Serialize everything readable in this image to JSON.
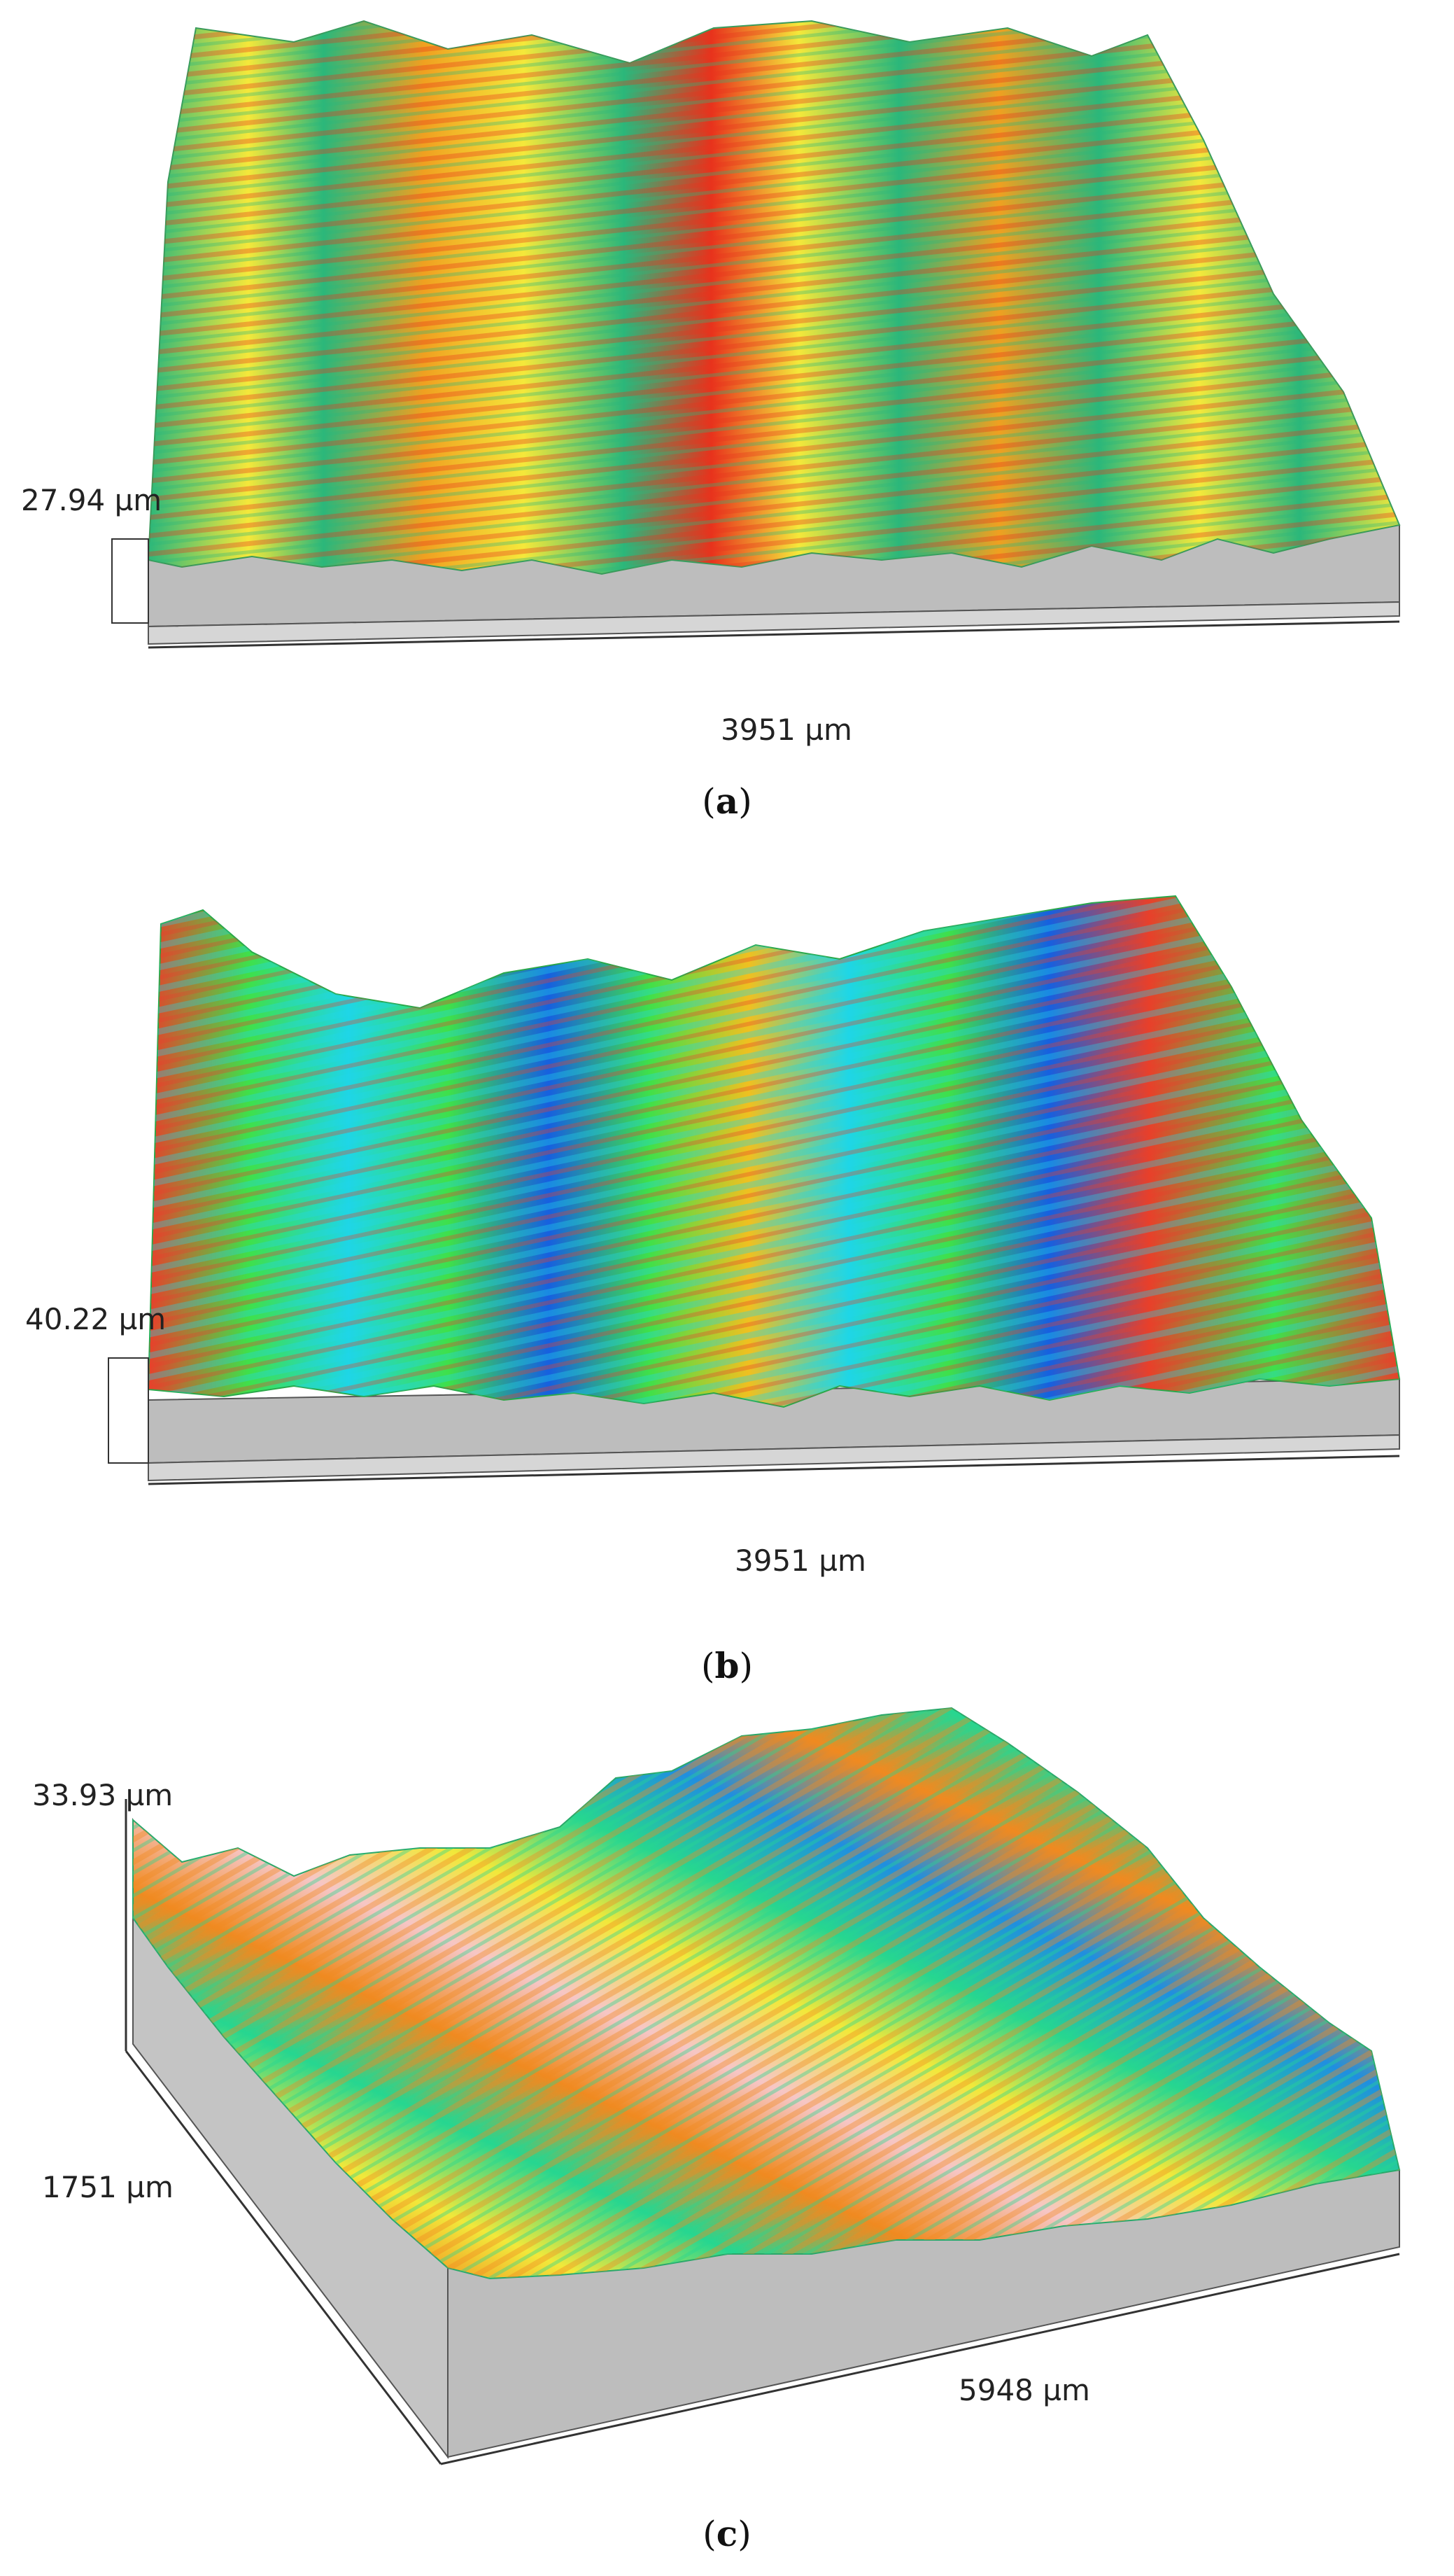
{
  "panels": [
    {
      "caption_letter": "a",
      "z_height": "27.94 µm",
      "x_width": "3951 µm",
      "palette": [
        "#2bb77a",
        "#f5e83a",
        "#f0a020",
        "#e8321c"
      ]
    },
    {
      "caption_letter": "b",
      "z_height": "40.22 µm",
      "x_width": "3951 µm",
      "palette": [
        "#1660e0",
        "#1ed6e6",
        "#3fe04a",
        "#f0c020",
        "#e8402a"
      ]
    },
    {
      "caption_letter": "c",
      "z_height": "33.93 µm",
      "y_width": "1751 µm",
      "x_width": "5948 µm",
      "palette": [
        "#1f8fe0",
        "#26d690",
        "#f2e83a",
        "#f08a20",
        "#f6c6c6"
      ]
    }
  ]
}
